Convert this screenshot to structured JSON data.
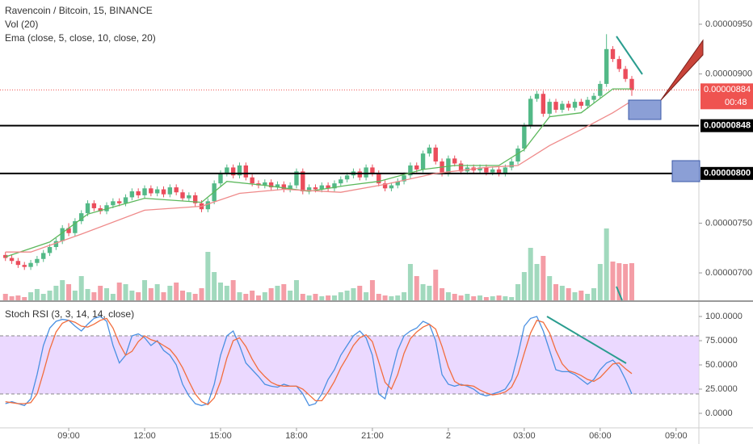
{
  "chart_data": [
    {
      "type": "candlestick",
      "title": "Ravencoin / Bitcoin, 15, BINANCE",
      "up_color": "#53b987",
      "down_color": "#eb4d5c",
      "xlim": [
        1.14,
        111.6
      ],
      "xticks": [
        {
          "value": 12,
          "label": "09:00"
        },
        {
          "value": 24,
          "label": "12:00"
        },
        {
          "value": 36,
          "label": "15:00"
        },
        {
          "value": 48,
          "label": "18:00"
        },
        {
          "value": 60,
          "label": "21:00"
        },
        {
          "value": 72,
          "label": "2"
        },
        {
          "value": 84,
          "label": "03:00"
        },
        {
          "value": 96,
          "label": "06:00"
        },
        {
          "value": 108,
          "label": "09:00"
        }
      ],
      "ylim": [
        6.7244e-06,
        9.7435e-06
      ],
      "yticks": [
        {
          "value": 9.5e-06,
          "label": "0.00000950"
        },
        {
          "value": 9e-06,
          "label": "0.00000900"
        },
        {
          "value": 7.5e-06,
          "label": "0.00000750"
        },
        {
          "value": 7e-06,
          "label": "0.00000700"
        }
      ],
      "price_lines": [
        {
          "value": 8.48e-06,
          "label": "0.00000848"
        },
        {
          "value": 8e-06,
          "label": "0.00000800"
        }
      ],
      "last_price": {
        "value": 8.84e-06,
        "label": "0.00000884",
        "color": "#ef5350"
      },
      "countdown": "00:48",
      "x": [
        2,
        3,
        4,
        5,
        6,
        7,
        8,
        9,
        10,
        11,
        12,
        13,
        14,
        15,
        16,
        17,
        18,
        19,
        20,
        21,
        22,
        23,
        24,
        25,
        26,
        27,
        28,
        29,
        30,
        31,
        32,
        33,
        34,
        35,
        36,
        37,
        38,
        39,
        40,
        41,
        42,
        43,
        44,
        45,
        46,
        47,
        48,
        49,
        50,
        51,
        52,
        53,
        54,
        55,
        56,
        57,
        58,
        59,
        60,
        61,
        62,
        63,
        64,
        65,
        66,
        67,
        68,
        69,
        70,
        71,
        72,
        73,
        74,
        75,
        76,
        77,
        78,
        79,
        80,
        81,
        82,
        83,
        84,
        85,
        86,
        87,
        88,
        89,
        90,
        91,
        92,
        93,
        94,
        95,
        96,
        97,
        98,
        99,
        100,
        101
      ],
      "candles": [
        [
          7.18e-06,
          7.21e-06,
          7.12e-06,
          7.15e-06
        ],
        [
          7.15e-06,
          7.18e-06,
          7.09e-06,
          7.12e-06
        ],
        [
          7.12e-06,
          7.15e-06,
          7.05e-06,
          7.08e-06
        ],
        [
          7.08e-06,
          7.11e-06,
          7.03e-06,
          7.06e-06
        ],
        [
          7.06e-06,
          7.13e-06,
          7.03e-06,
          7.1e-06
        ],
        [
          7.1e-06,
          7.17e-06,
          7.07e-06,
          7.14e-06
        ],
        [
          7.14e-06,
          7.23e-06,
          7.11e-06,
          7.2e-06
        ],
        [
          7.2e-06,
          7.29e-06,
          7.17e-06,
          7.26e-06
        ],
        [
          7.26e-06,
          7.35e-06,
          7.23e-06,
          7.32e-06
        ],
        [
          7.32e-06,
          7.48e-06,
          7.29e-06,
          7.45e-06
        ],
        [
          7.45e-06,
          7.5e-06,
          7.37e-06,
          7.4e-06
        ],
        [
          7.4e-06,
          7.55e-06,
          7.37e-06,
          7.52e-06
        ],
        [
          7.52e-06,
          7.63e-06,
          7.49e-06,
          7.6e-06
        ],
        [
          7.6e-06,
          7.73e-06,
          7.57e-06,
          7.7e-06
        ],
        [
          7.7e-06,
          7.73e-06,
          7.62e-06,
          7.65e-06
        ],
        [
          7.65e-06,
          7.68e-06,
          7.59e-06,
          7.62e-06
        ],
        [
          7.62e-06,
          7.71e-06,
          7.59e-06,
          7.68e-06
        ],
        [
          7.68e-06,
          7.75e-06,
          7.65e-06,
          7.72e-06
        ],
        [
          7.72e-06,
          7.75e-06,
          7.67e-06,
          7.7e-06
        ],
        [
          7.7e-06,
          7.79e-06,
          7.67e-06,
          7.76e-06
        ],
        [
          7.76e-06,
          7.85e-06,
          7.73e-06,
          7.82e-06
        ],
        [
          7.82e-06,
          7.85e-06,
          7.75e-06,
          7.78e-06
        ],
        [
          7.78e-06,
          7.88e-06,
          7.75e-06,
          7.85e-06
        ],
        [
          7.85e-06,
          7.88e-06,
          7.77e-06,
          7.8e-06
        ],
        [
          7.8e-06,
          7.87e-06,
          7.77e-06,
          7.84e-06
        ],
        [
          7.84e-06,
          7.87e-06,
          7.76e-06,
          7.79e-06
        ],
        [
          7.79e-06,
          7.89e-06,
          7.76e-06,
          7.86e-06
        ],
        [
          7.86e-06,
          7.89e-06,
          7.78e-06,
          7.81e-06
        ],
        [
          7.81e-06,
          7.84e-06,
          7.72e-06,
          7.75e-06
        ],
        [
          7.75e-06,
          7.81e-06,
          7.72e-06,
          7.78e-06
        ],
        [
          7.78e-06,
          7.81e-06,
          7.67e-06,
          7.7e-06
        ],
        [
          7.7e-06,
          7.73e-06,
          7.61e-06,
          7.64e-06
        ],
        [
          7.64e-06,
          7.75e-06,
          7.61e-06,
          7.72e-06
        ],
        [
          7.72e-06,
          7.93e-06,
          7.69e-06,
          7.9e-06
        ],
        [
          7.9e-06,
          8.03e-06,
          7.87e-06,
          8e-06
        ],
        [
          8e-06,
          8.09e-06,
          7.97e-06,
          8.06e-06
        ],
        [
          8.06e-06,
          8.09e-06,
          7.95e-06,
          7.98e-06
        ],
        [
          7.98e-06,
          8.11e-06,
          7.95e-06,
          8.08e-06
        ],
        [
          8.08e-06,
          8.11e-06,
          7.93e-06,
          7.96e-06
        ],
        [
          7.96e-06,
          7.99e-06,
          7.87e-06,
          7.9e-06
        ],
        [
          7.9e-06,
          7.93e-06,
          7.85e-06,
          7.88e-06
        ],
        [
          7.88e-06,
          7.94e-06,
          7.85e-06,
          7.91e-06
        ],
        [
          7.91e-06,
          7.94e-06,
          7.83e-06,
          7.86e-06
        ],
        [
          7.86e-06,
          7.92e-06,
          7.83e-06,
          7.89e-06
        ],
        [
          7.89e-06,
          7.92e-06,
          7.81e-06,
          7.84e-06
        ],
        [
          7.84e-06,
          7.91e-06,
          7.81e-06,
          7.88e-06
        ],
        [
          7.88e-06,
          8.05e-06,
          7.85e-06,
          8.02e-06
        ],
        [
          8.02e-06,
          8.05e-06,
          7.79e-06,
          7.82e-06
        ],
        [
          7.82e-06,
          7.89e-06,
          7.79e-06,
          7.86e-06
        ],
        [
          7.86e-06,
          7.89e-06,
          7.81e-06,
          7.84e-06
        ],
        [
          7.84e-06,
          7.91e-06,
          7.81e-06,
          7.88e-06
        ],
        [
          7.88e-06,
          7.91e-06,
          7.82e-06,
          7.85e-06
        ],
        [
          7.85e-06,
          7.93e-06,
          7.82e-06,
          7.9e-06
        ],
        [
          7.9e-06,
          7.97e-06,
          7.87e-06,
          7.94e-06
        ],
        [
          7.94e-06,
          8.01e-06,
          7.91e-06,
          7.98e-06
        ],
        [
          7.98e-06,
          8.05e-06,
          7.95e-06,
          8.02e-06
        ],
        [
          8.02e-06,
          8.05e-06,
          7.93e-06,
          7.96e-06
        ],
        [
          7.96e-06,
          8.09e-06,
          7.93e-06,
          8.06e-06
        ],
        [
          8.06e-06,
          8.09e-06,
          7.97e-06,
          8e-06
        ],
        [
          8e-06,
          8.03e-06,
          7.87e-06,
          7.9e-06
        ],
        [
          7.9e-06,
          7.93e-06,
          7.82e-06,
          7.85e-06
        ],
        [
          7.85e-06,
          7.91e-06,
          7.82e-06,
          7.88e-06
        ],
        [
          7.88e-06,
          7.95e-06,
          7.85e-06,
          7.92e-06
        ],
        [
          7.92e-06,
          8.01e-06,
          7.89e-06,
          7.98e-06
        ],
        [
          7.98e-06,
          8.11e-06,
          7.95e-06,
          8.08e-06
        ],
        [
          8.08e-06,
          8.11e-06,
          8.01e-06,
          8.04e-06
        ],
        [
          8.04e-06,
          8.23e-06,
          8.01e-06,
          8.2e-06
        ],
        [
          8.2e-06,
          8.29e-06,
          8.17e-06,
          8.26e-06
        ],
        [
          8.26e-06,
          8.29e-06,
          8.09e-06,
          8.12e-06
        ],
        [
          8.12e-06,
          8.15e-06,
          7.97e-06,
          8e-06
        ],
        [
          8e-06,
          8.18e-06,
          7.97e-06,
          8.15e-06
        ],
        [
          8.15e-06,
          8.18e-06,
          8.07e-06,
          8.1e-06
        ],
        [
          8.1e-06,
          8.13e-06,
          7.99e-06,
          8.02e-06
        ],
        [
          8.02e-06,
          8.09e-06,
          7.99e-06,
          8.06e-06
        ],
        [
          8.06e-06,
          8.09e-06,
          8e-06,
          8.03e-06
        ],
        [
          8.03e-06,
          8.09e-06,
          8e-06,
          8.06e-06
        ],
        [
          8.06e-06,
          8.09e-06,
          7.98e-06,
          8.01e-06
        ],
        [
          8.01e-06,
          8.07e-06,
          7.98e-06,
          8.04e-06
        ],
        [
          8.04e-06,
          8.07e-06,
          7.97e-06,
          8e-06
        ],
        [
          8e-06,
          8.09e-06,
          7.97e-06,
          8.06e-06
        ],
        [
          8.06e-06,
          8.15e-06,
          8.03e-06,
          8.12e-06
        ],
        [
          8.12e-06,
          8.28e-06,
          8.09e-06,
          8.25e-06
        ],
        [
          8.25e-06,
          8.51e-06,
          8.22e-06,
          8.48e-06
        ],
        [
          8.48e-06,
          8.78e-06,
          8.45e-06,
          8.75e-06
        ],
        [
          8.75e-06,
          8.83e-06,
          8.72e-06,
          8.8e-06
        ],
        [
          8.8e-06,
          8.83e-06,
          8.57e-06,
          8.6e-06
        ],
        [
          8.6e-06,
          8.75e-06,
          8.57e-06,
          8.72e-06
        ],
        [
          8.72e-06,
          8.75e-06,
          8.61e-06,
          8.64e-06
        ],
        [
          8.64e-06,
          8.73e-06,
          8.61e-06,
          8.7e-06
        ],
        [
          8.7e-06,
          8.73e-06,
          8.63e-06,
          8.66e-06
        ],
        [
          8.66e-06,
          8.75e-06,
          8.63e-06,
          8.72e-06
        ],
        [
          8.72e-06,
          8.75e-06,
          8.65e-06,
          8.68e-06
        ],
        [
          8.68e-06,
          8.77e-06,
          8.65e-06,
          8.74e-06
        ],
        [
          8.74e-06,
          8.81e-06,
          8.71e-06,
          8.78e-06
        ],
        [
          8.78e-06,
          8.93e-06,
          8.75e-06,
          8.9e-06
        ],
        [
          8.9e-06,
          9.4e-06,
          8.87e-06,
          9.25e-06
        ],
        [
          9.25e-06,
          9.28e-06,
          9.12e-06,
          9.15e-06
        ],
        [
          9.15e-06,
          9.18e-06,
          9.02e-06,
          9.05e-06
        ],
        [
          9.05e-06,
          9.08e-06,
          8.92e-06,
          8.95e-06
        ],
        [
          8.95e-06,
          8.98e-06,
          8.78e-06,
          8.84e-06
        ]
      ]
    },
    {
      "type": "line",
      "title": "Ema (close, 5, close, 10, close, 20)",
      "series": [
        {
          "color": "#5cb85c",
          "x": [
            2,
            9,
            15,
            24,
            33,
            37,
            43,
            50,
            56,
            61,
            68,
            73,
            80,
            84,
            88,
            93,
            98,
            101
          ],
          "values": [
            7.16e-06,
            7.31e-06,
            7.59e-06,
            7.75e-06,
            7.71e-06,
            7.92e-06,
            7.88e-06,
            7.82e-06,
            7.88e-06,
            7.92e-06,
            8.04e-06,
            8.08e-06,
            8.08e-06,
            8.24e-06,
            8.57e-06,
            8.61e-06,
            8.85e-06,
            8.85e-06
          ]
        },
        {
          "color": "#ef8a8a",
          "x": [
            2,
            6,
            14,
            24,
            33,
            39,
            46,
            55,
            62,
            70,
            78,
            83,
            88,
            93,
            98,
            101
          ],
          "values": [
            7.21e-06,
            7.21e-06,
            7.39e-06,
            7.63e-06,
            7.67e-06,
            7.8e-06,
            7.84e-06,
            7.81e-06,
            7.89e-06,
            8e-06,
            8.06e-06,
            8.08e-06,
            8.28e-06,
            8.44e-06,
            8.61e-06,
            8.73e-06
          ]
        }
      ]
    },
    {
      "type": "bar",
      "title": "Vol (20)",
      "ylim": [
        0,
        100
      ],
      "values": [
        8,
        5,
        6,
        4,
        10,
        14,
        8,
        12,
        18,
        25,
        20,
        12,
        30,
        14,
        10,
        18,
        15,
        8,
        22,
        20,
        12,
        10,
        25,
        15,
        20,
        10,
        18,
        22,
        12,
        10,
        8,
        15,
        60,
        35,
        22,
        18,
        25,
        10,
        8,
        12,
        6,
        10,
        15,
        18,
        20,
        12,
        25,
        8,
        6,
        8,
        5,
        6,
        6,
        10,
        12,
        15,
        18,
        10,
        25,
        8,
        6,
        5,
        6,
        10,
        45,
        30,
        20,
        18,
        38,
        15,
        10,
        8,
        6,
        8,
        5,
        6,
        4,
        5,
        6,
        5,
        4,
        20,
        35,
        65,
        45,
        55,
        30,
        20,
        18,
        15,
        10,
        12,
        8,
        15,
        45,
        89,
        48,
        46,
        45,
        46
      ]
    },
    {
      "type": "line",
      "title": "Stoch RSI (3, 3, 14, 14, close)",
      "ylim": [
        -15,
        114.2
      ],
      "band": [
        20,
        80
      ],
      "band_color": "#e6cfff",
      "yticks": [
        {
          "value": 100,
          "label": "100.0000"
        },
        {
          "value": 75,
          "label": "75.0000"
        },
        {
          "value": 50,
          "label": "50.0000"
        },
        {
          "value": 25,
          "label": "25.0000"
        },
        {
          "value": 0,
          "label": "0.0000"
        }
      ],
      "series": [
        {
          "color": "#4a90e2",
          "values": [
            10,
            12,
            10,
            8,
            15,
            40,
            70,
            88,
            95,
            97,
            96,
            90,
            85,
            92,
            98,
            100,
            95,
            70,
            52,
            60,
            80,
            82,
            78,
            70,
            75,
            65,
            60,
            50,
            30,
            18,
            10,
            8,
            10,
            30,
            60,
            80,
            85,
            70,
            52,
            45,
            38,
            30,
            28,
            27,
            30,
            28,
            28,
            20,
            8,
            10,
            20,
            35,
            45,
            60,
            70,
            80,
            85,
            78,
            60,
            20,
            15,
            40,
            65,
            80,
            85,
            88,
            95,
            92,
            75,
            40,
            30,
            28,
            30,
            28,
            25,
            20,
            18,
            20,
            22,
            25,
            35,
            60,
            90,
            98,
            100,
            85,
            65,
            45,
            43,
            43,
            40,
            35,
            30,
            35,
            45,
            52,
            55,
            48,
            35,
            20
          ]
        },
        {
          "color": "#f26d3d",
          "values": [
            12,
            11,
            10,
            10,
            11,
            20,
            42,
            66,
            84,
            93,
            96,
            94,
            90,
            89,
            92,
            96,
            98,
            88,
            72,
            60,
            64,
            74,
            80,
            76,
            74,
            70,
            66,
            58,
            47,
            33,
            20,
            12,
            9,
            16,
            33,
            57,
            75,
            78,
            69,
            56,
            45,
            38,
            32,
            29,
            28,
            28,
            28,
            25,
            19,
            13,
            13,
            22,
            33,
            47,
            58,
            70,
            78,
            81,
            74,
            53,
            32,
            25,
            40,
            62,
            77,
            84,
            89,
            92,
            87,
            69,
            48,
            33,
            29,
            29,
            28,
            24,
            21,
            19,
            20,
            22,
            27,
            40,
            62,
            83,
            96,
            94,
            83,
            65,
            51,
            44,
            42,
            39,
            35,
            33,
            37,
            44,
            51,
            52,
            46,
            41
          ]
        }
      ]
    }
  ]
}
